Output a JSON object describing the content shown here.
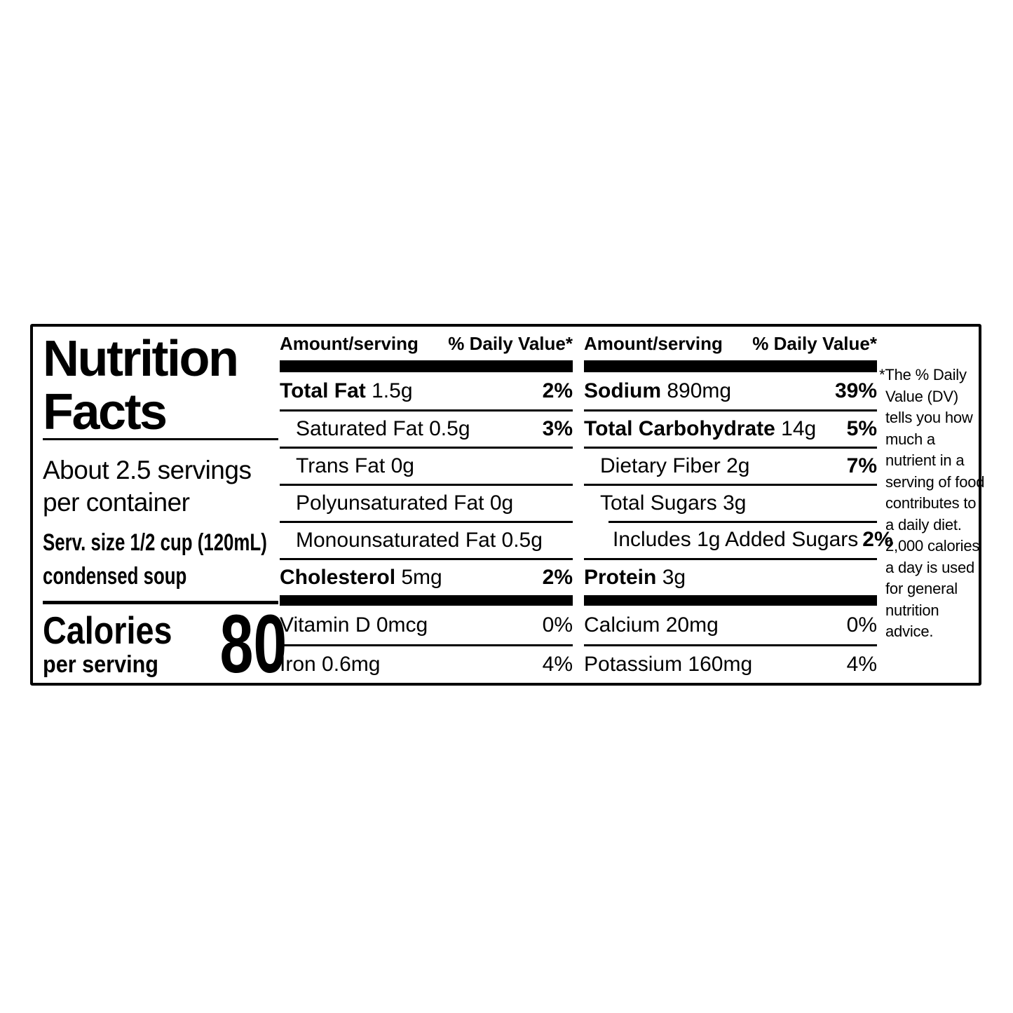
{
  "label": {
    "title": "Nutrition Facts",
    "servings_per_container": "About 2.5 servings per container",
    "serving_size": {
      "line1": "Serv. size 1/2 cup (120mL)",
      "line2": "condensed soup"
    },
    "calories": {
      "label": "Calories",
      "sublabel": "per serving",
      "value": "80"
    },
    "table_headers": {
      "amount": "Amount/serving",
      "daily_value": "% Daily Value*"
    },
    "mid_rows": [
      {
        "name": "Total Fat",
        "amount": "1.5g",
        "dv": "2%"
      },
      {
        "name": "Saturated Fat",
        "amount": "0.5g",
        "dv": "3%"
      },
      {
        "name": "Trans Fat",
        "amount": "0g",
        "dv": ""
      },
      {
        "name": "Polyunsaturated Fat",
        "amount": "0g",
        "dv": ""
      },
      {
        "name": "Monounsaturated Fat",
        "amount": "0.5g",
        "dv": ""
      },
      {
        "name": "Cholesterol",
        "amount": "5mg",
        "dv": "2%"
      },
      {
        "name": "Vitamin D",
        "amount": "0mcg",
        "dv": "0%"
      },
      {
        "name": "Iron",
        "amount": "0.6mg",
        "dv": "4%"
      }
    ],
    "right_rows": [
      {
        "name": "Sodium",
        "amount": "890mg",
        "dv": "39%"
      },
      {
        "name": "Total Carbohydrate",
        "amount": "14g",
        "dv": "5%"
      },
      {
        "name": "Dietary Fiber",
        "amount": "2g",
        "dv": "7%"
      },
      {
        "name": "Total Sugars",
        "amount": "3g",
        "dv": ""
      },
      {
        "name": "Includes 1g Added Sugars",
        "amount": "",
        "dv": "2%"
      },
      {
        "name": "Protein",
        "amount": "3g",
        "dv": ""
      },
      {
        "name": "Calcium",
        "amount": "20mg",
        "dv": "0%"
      },
      {
        "name": "Potassium",
        "amount": "160mg",
        "dv": "4%"
      }
    ],
    "footnote": "*The % Daily Value (DV) tells you how much a nutrient in a serving of food contributes to a daily diet. 2,000 calories a day is used for general nutrition advice.",
    "colors": {
      "ink": "#000000",
      "paper": "#ffffff"
    }
  }
}
